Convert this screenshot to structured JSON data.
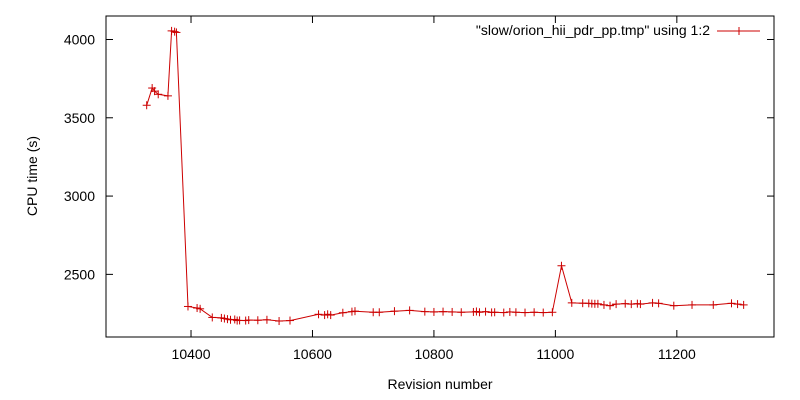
{
  "chart_data": {
    "type": "line",
    "xlabel": "Revision number",
    "ylabel": "CPU time (s)",
    "xlim": [
      10260,
      11360
    ],
    "ylim": [
      2100,
      4150
    ],
    "xticks": [
      10400,
      10600,
      10800,
      11000,
      11200
    ],
    "yticks": [
      2500,
      3000,
      3500,
      4000
    ],
    "grid": false,
    "legend_position": "top-right",
    "series": [
      {
        "name": "\"slow/orion_hii_pdr_pp.tmp\" using 1:2",
        "color": "#cc0000",
        "marker": "plus",
        "x": [
          10327,
          10336,
          10340,
          10346,
          10362,
          10368,
          10373,
          10376,
          10395,
          10410,
          10415,
          10435,
          10450,
          10455,
          10460,
          10465,
          10472,
          10476,
          10480,
          10490,
          10495,
          10510,
          10525,
          10545,
          10563,
          10610,
          10620,
          10625,
          10630,
          10650,
          10665,
          10670,
          10700,
          10710,
          10735,
          10760,
          10785,
          10800,
          10815,
          10830,
          10845,
          10865,
          10870,
          10875,
          10885,
          10895,
          10900,
          10915,
          10925,
          10935,
          10950,
          10965,
          10980,
          10995,
          11010,
          11027,
          11045,
          11055,
          11060,
          11065,
          11070,
          11080,
          11090,
          11100,
          11115,
          11125,
          11135,
          11140,
          11160,
          11170,
          11195,
          11225,
          11260,
          11290,
          11300,
          11310
        ],
        "y": [
          3580,
          3690,
          3670,
          3650,
          3640,
          4055,
          4050,
          4045,
          2295,
          2285,
          2280,
          2225,
          2222,
          2218,
          2214,
          2210,
          2212,
          2205,
          2206,
          2205,
          2208,
          2207,
          2210,
          2202,
          2205,
          2245,
          2240,
          2245,
          2240,
          2255,
          2262,
          2265,
          2258,
          2258,
          2265,
          2270,
          2262,
          2260,
          2262,
          2260,
          2258,
          2260,
          2263,
          2258,
          2262,
          2257,
          2258,
          2256,
          2260,
          2258,
          2256,
          2258,
          2256,
          2258,
          2555,
          2318,
          2316,
          2315,
          2313,
          2312,
          2312,
          2305,
          2300,
          2310,
          2313,
          2310,
          2313,
          2310,
          2318,
          2315,
          2300,
          2305,
          2305,
          2315,
          2310,
          2305
        ]
      }
    ]
  }
}
